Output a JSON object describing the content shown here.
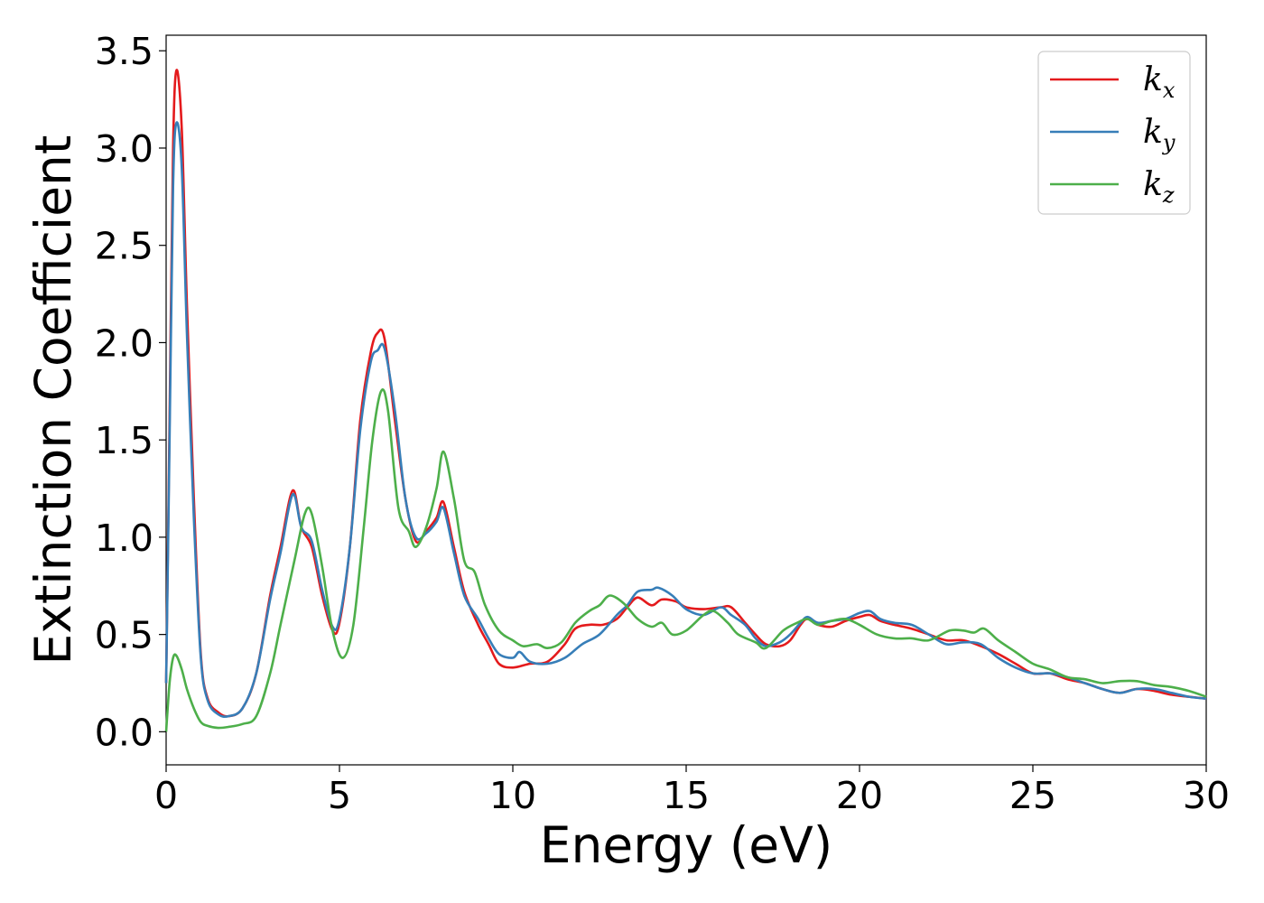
{
  "chart_data": {
    "type": "line",
    "xlabel": "Energy (eV)",
    "ylabel": "Extinction Coefficient",
    "xlim": [
      0,
      30
    ],
    "ylim": [
      -0.17,
      3.58
    ],
    "xticks": [
      0,
      5,
      10,
      15,
      20,
      25,
      30
    ],
    "xtick_labels": [
      "0",
      "5",
      "10",
      "15",
      "20",
      "25",
      "30"
    ],
    "yticks": [
      0.0,
      0.5,
      1.0,
      1.5,
      2.0,
      2.5,
      3.0,
      3.5
    ],
    "ytick_labels": [
      "0.0",
      "0.5",
      "1.0",
      "1.5",
      "2.0",
      "2.5",
      "3.0",
      "3.5"
    ],
    "grid": false,
    "legend_position": "top-right",
    "series": [
      {
        "name": "k",
        "subscript": "x",
        "color": "#e41a1c",
        "points": [
          [
            0,
            0.25
          ],
          [
            0.1,
            1.6
          ],
          [
            0.2,
            3.0
          ],
          [
            0.3,
            3.4
          ],
          [
            0.45,
            3.1
          ],
          [
            0.6,
            2.2
          ],
          [
            0.8,
            1.2
          ],
          [
            1.0,
            0.4
          ],
          [
            1.2,
            0.17
          ],
          [
            1.5,
            0.1
          ],
          [
            1.8,
            0.08
          ],
          [
            2.2,
            0.12
          ],
          [
            2.6,
            0.3
          ],
          [
            3.0,
            0.7
          ],
          [
            3.3,
            0.95
          ],
          [
            3.65,
            1.24
          ],
          [
            3.9,
            1.05
          ],
          [
            4.2,
            0.95
          ],
          [
            4.5,
            0.7
          ],
          [
            4.8,
            0.52
          ],
          [
            5.0,
            0.56
          ],
          [
            5.3,
            0.95
          ],
          [
            5.6,
            1.6
          ],
          [
            5.9,
            1.95
          ],
          [
            6.1,
            2.05
          ],
          [
            6.3,
            2.02
          ],
          [
            6.6,
            1.6
          ],
          [
            6.9,
            1.2
          ],
          [
            7.2,
            0.98
          ],
          [
            7.5,
            1.03
          ],
          [
            7.8,
            1.1
          ],
          [
            8.0,
            1.18
          ],
          [
            8.3,
            0.95
          ],
          [
            8.6,
            0.72
          ],
          [
            9.0,
            0.55
          ],
          [
            9.3,
            0.45
          ],
          [
            9.6,
            0.35
          ],
          [
            10.0,
            0.33
          ],
          [
            10.5,
            0.35
          ],
          [
            11.0,
            0.36
          ],
          [
            11.5,
            0.45
          ],
          [
            11.8,
            0.53
          ],
          [
            12.2,
            0.55
          ],
          [
            12.6,
            0.55
          ],
          [
            13.0,
            0.58
          ],
          [
            13.3,
            0.64
          ],
          [
            13.6,
            0.69
          ],
          [
            14.0,
            0.65
          ],
          [
            14.3,
            0.68
          ],
          [
            14.7,
            0.67
          ],
          [
            15.0,
            0.64
          ],
          [
            15.5,
            0.63
          ],
          [
            16.0,
            0.64
          ],
          [
            16.3,
            0.64
          ],
          [
            16.7,
            0.56
          ],
          [
            17.0,
            0.5
          ],
          [
            17.3,
            0.45
          ],
          [
            17.7,
            0.44
          ],
          [
            18.0,
            0.47
          ],
          [
            18.3,
            0.55
          ],
          [
            18.5,
            0.58
          ],
          [
            18.8,
            0.55
          ],
          [
            19.2,
            0.54
          ],
          [
            19.6,
            0.57
          ],
          [
            20.0,
            0.59
          ],
          [
            20.3,
            0.6
          ],
          [
            20.6,
            0.57
          ],
          [
            21.0,
            0.55
          ],
          [
            21.5,
            0.53
          ],
          [
            22.0,
            0.5
          ],
          [
            22.5,
            0.47
          ],
          [
            23.0,
            0.47
          ],
          [
            23.5,
            0.44
          ],
          [
            24.0,
            0.4
          ],
          [
            24.5,
            0.35
          ],
          [
            25.0,
            0.3
          ],
          [
            25.5,
            0.3
          ],
          [
            26.0,
            0.27
          ],
          [
            26.5,
            0.25
          ],
          [
            27.0,
            0.22
          ],
          [
            27.5,
            0.2
          ],
          [
            28.0,
            0.22
          ],
          [
            28.5,
            0.21
          ],
          [
            29.0,
            0.19
          ],
          [
            29.5,
            0.18
          ],
          [
            30.0,
            0.17
          ]
        ]
      },
      {
        "name": "k",
        "subscript": "y",
        "color": "#377eb8",
        "points": [
          [
            0,
            0.25
          ],
          [
            0.1,
            1.5
          ],
          [
            0.2,
            2.8
          ],
          [
            0.3,
            3.13
          ],
          [
            0.45,
            2.9
          ],
          [
            0.6,
            2.05
          ],
          [
            0.8,
            1.1
          ],
          [
            1.0,
            0.38
          ],
          [
            1.2,
            0.16
          ],
          [
            1.5,
            0.09
          ],
          [
            1.8,
            0.08
          ],
          [
            2.2,
            0.12
          ],
          [
            2.6,
            0.3
          ],
          [
            3.0,
            0.68
          ],
          [
            3.3,
            0.92
          ],
          [
            3.65,
            1.22
          ],
          [
            3.9,
            1.05
          ],
          [
            4.2,
            0.98
          ],
          [
            4.5,
            0.73
          ],
          [
            4.8,
            0.54
          ],
          [
            5.0,
            0.58
          ],
          [
            5.3,
            0.95
          ],
          [
            5.6,
            1.55
          ],
          [
            5.9,
            1.9
          ],
          [
            6.1,
            1.96
          ],
          [
            6.3,
            1.97
          ],
          [
            6.6,
            1.65
          ],
          [
            6.9,
            1.2
          ],
          [
            7.2,
            1.0
          ],
          [
            7.5,
            1.02
          ],
          [
            7.8,
            1.08
          ],
          [
            8.0,
            1.15
          ],
          [
            8.3,
            0.92
          ],
          [
            8.6,
            0.7
          ],
          [
            9.0,
            0.58
          ],
          [
            9.3,
            0.48
          ],
          [
            9.6,
            0.4
          ],
          [
            10.0,
            0.38
          ],
          [
            10.2,
            0.41
          ],
          [
            10.5,
            0.36
          ],
          [
            11.0,
            0.35
          ],
          [
            11.5,
            0.38
          ],
          [
            12.0,
            0.45
          ],
          [
            12.5,
            0.5
          ],
          [
            13.0,
            0.6
          ],
          [
            13.3,
            0.65
          ],
          [
            13.6,
            0.72
          ],
          [
            14.0,
            0.73
          ],
          [
            14.2,
            0.74
          ],
          [
            14.6,
            0.7
          ],
          [
            15.0,
            0.63
          ],
          [
            15.5,
            0.6
          ],
          [
            16.0,
            0.64
          ],
          [
            16.3,
            0.6
          ],
          [
            16.7,
            0.55
          ],
          [
            17.0,
            0.48
          ],
          [
            17.3,
            0.44
          ],
          [
            17.7,
            0.46
          ],
          [
            18.0,
            0.5
          ],
          [
            18.3,
            0.56
          ],
          [
            18.5,
            0.59
          ],
          [
            18.8,
            0.56
          ],
          [
            19.2,
            0.57
          ],
          [
            19.6,
            0.58
          ],
          [
            20.0,
            0.61
          ],
          [
            20.3,
            0.62
          ],
          [
            20.6,
            0.58
          ],
          [
            21.0,
            0.56
          ],
          [
            21.5,
            0.55
          ],
          [
            22.0,
            0.5
          ],
          [
            22.5,
            0.45
          ],
          [
            23.0,
            0.46
          ],
          [
            23.5,
            0.45
          ],
          [
            24.0,
            0.38
          ],
          [
            24.5,
            0.33
          ],
          [
            25.0,
            0.3
          ],
          [
            25.5,
            0.3
          ],
          [
            26.0,
            0.28
          ],
          [
            26.5,
            0.25
          ],
          [
            27.0,
            0.22
          ],
          [
            27.5,
            0.2
          ],
          [
            28.0,
            0.22
          ],
          [
            28.5,
            0.22
          ],
          [
            29.0,
            0.2
          ],
          [
            29.5,
            0.18
          ],
          [
            30.0,
            0.17
          ]
        ]
      },
      {
        "name": "k",
        "subscript": "z",
        "color": "#4daf4a",
        "points": [
          [
            0,
            0.0
          ],
          [
            0.1,
            0.25
          ],
          [
            0.2,
            0.38
          ],
          [
            0.3,
            0.39
          ],
          [
            0.45,
            0.32
          ],
          [
            0.6,
            0.22
          ],
          [
            0.8,
            0.12
          ],
          [
            1.0,
            0.05
          ],
          [
            1.2,
            0.03
          ],
          [
            1.5,
            0.02
          ],
          [
            1.8,
            0.025
          ],
          [
            2.2,
            0.04
          ],
          [
            2.6,
            0.08
          ],
          [
            3.0,
            0.3
          ],
          [
            3.3,
            0.55
          ],
          [
            3.7,
            0.88
          ],
          [
            4.0,
            1.12
          ],
          [
            4.2,
            1.12
          ],
          [
            4.5,
            0.85
          ],
          [
            4.8,
            0.52
          ],
          [
            5.1,
            0.38
          ],
          [
            5.4,
            0.55
          ],
          [
            5.7,
            1.05
          ],
          [
            5.95,
            1.5
          ],
          [
            6.2,
            1.75
          ],
          [
            6.4,
            1.65
          ],
          [
            6.7,
            1.15
          ],
          [
            7.0,
            1.03
          ],
          [
            7.2,
            0.95
          ],
          [
            7.5,
            1.05
          ],
          [
            7.8,
            1.25
          ],
          [
            8.0,
            1.44
          ],
          [
            8.3,
            1.2
          ],
          [
            8.6,
            0.88
          ],
          [
            8.9,
            0.82
          ],
          [
            9.2,
            0.65
          ],
          [
            9.6,
            0.52
          ],
          [
            10.0,
            0.47
          ],
          [
            10.3,
            0.44
          ],
          [
            10.7,
            0.45
          ],
          [
            11.0,
            0.43
          ],
          [
            11.4,
            0.46
          ],
          [
            11.8,
            0.56
          ],
          [
            12.2,
            0.62
          ],
          [
            12.5,
            0.65
          ],
          [
            12.8,
            0.7
          ],
          [
            13.2,
            0.66
          ],
          [
            13.6,
            0.58
          ],
          [
            14.0,
            0.54
          ],
          [
            14.3,
            0.56
          ],
          [
            14.6,
            0.5
          ],
          [
            15.0,
            0.52
          ],
          [
            15.5,
            0.6
          ],
          [
            15.8,
            0.62
          ],
          [
            16.2,
            0.56
          ],
          [
            16.5,
            0.5
          ],
          [
            17.0,
            0.46
          ],
          [
            17.3,
            0.43
          ],
          [
            17.8,
            0.52
          ],
          [
            18.2,
            0.56
          ],
          [
            18.5,
            0.58
          ],
          [
            18.8,
            0.55
          ],
          [
            19.2,
            0.57
          ],
          [
            19.6,
            0.58
          ],
          [
            20.0,
            0.55
          ],
          [
            20.5,
            0.5
          ],
          [
            21.0,
            0.48
          ],
          [
            21.5,
            0.48
          ],
          [
            22.0,
            0.47
          ],
          [
            22.6,
            0.52
          ],
          [
            23.0,
            0.52
          ],
          [
            23.3,
            0.51
          ],
          [
            23.6,
            0.53
          ],
          [
            24.0,
            0.47
          ],
          [
            24.5,
            0.41
          ],
          [
            25.0,
            0.35
          ],
          [
            25.5,
            0.32
          ],
          [
            26.0,
            0.28
          ],
          [
            26.5,
            0.27
          ],
          [
            27.0,
            0.25
          ],
          [
            27.5,
            0.26
          ],
          [
            28.0,
            0.26
          ],
          [
            28.5,
            0.24
          ],
          [
            29.0,
            0.23
          ],
          [
            29.5,
            0.21
          ],
          [
            30.0,
            0.18
          ]
        ]
      }
    ]
  }
}
